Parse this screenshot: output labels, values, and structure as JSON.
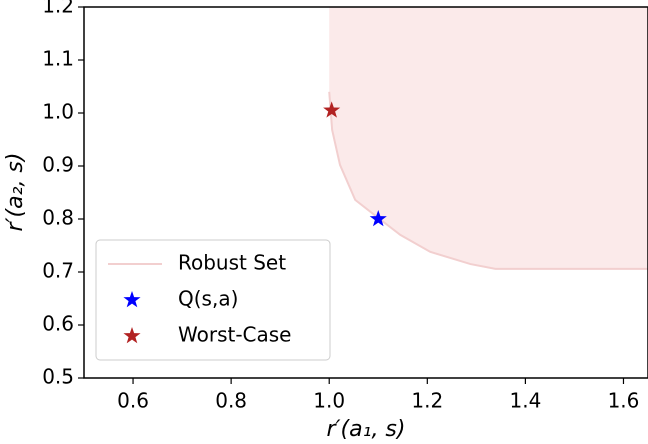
{
  "chart_data": {
    "type": "robust-set",
    "xlabel": "r′(a₁, s)",
    "ylabel": "r′(a₂, s)",
    "xlim": [
      0.5,
      1.65
    ],
    "ylim": [
      0.5,
      1.2
    ],
    "xticks": [
      0.6,
      0.8,
      {
        "value": 1.0,
        "label": "1.0"
      },
      1.2,
      1.4,
      1.6
    ],
    "yticks": [
      0.5,
      0.6,
      0.7,
      0.8,
      0.9,
      {
        "value": 1.0,
        "label": "1.0"
      },
      1.1,
      1.2
    ],
    "legend": "lower left",
    "series": [
      {
        "name": "Robust Set",
        "type": "area",
        "color": "#f2cfcf",
        "fill": "#fbeaea",
        "x": [
          1.0,
          1.006,
          1.022,
          1.053,
          1.1,
          1.145,
          1.206,
          1.288,
          1.339,
          1.65
        ],
        "values": [
          1.04,
          0.968,
          0.902,
          0.836,
          0.802,
          0.77,
          0.738,
          0.715,
          0.706,
          0.706
        ]
      },
      {
        "name": "Q(s,a)",
        "type": "scatter",
        "marker": "star",
        "color": "#0000ff",
        "x": [
          1.1
        ],
        "values": [
          0.8
        ]
      },
      {
        "name": "Worst-Case",
        "type": "scatter",
        "marker": "star",
        "color": "#b22222",
        "x": [
          1.005
        ],
        "values": [
          1.005
        ]
      }
    ]
  }
}
